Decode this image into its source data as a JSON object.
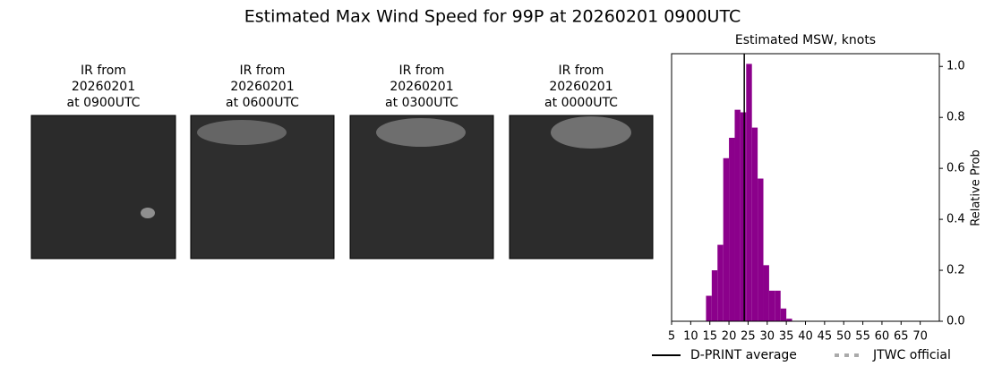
{
  "title": "Estimated Max Wind Speed for 99P at 20260201 0900UTC",
  "panels": [
    {
      "title_lines": [
        "IR from",
        "20260201",
        "at 0900UTC"
      ]
    },
    {
      "title_lines": [
        "IR from",
        "20260201",
        "at 0600UTC"
      ]
    },
    {
      "title_lines": [
        "IR from",
        "20260201",
        "at 0300UTC"
      ]
    },
    {
      "title_lines": [
        "IR from",
        "20260201",
        "at 0000UTC"
      ]
    }
  ],
  "chart_data": {
    "type": "histogram",
    "title": "Estimated MSW, knots",
    "y_label": "Relative Prob",
    "color": "#8b008b",
    "bins": [
      14,
      15.5,
      17,
      18.5,
      20,
      21.5,
      23,
      24.5,
      26,
      27.5,
      29,
      30.5,
      32,
      33.5,
      35,
      36.5
    ],
    "values": [
      0.1,
      0.2,
      0.3,
      0.64,
      0.72,
      0.83,
      0.82,
      1.01,
      0.76,
      0.56,
      0.22,
      0.12,
      0.12,
      0.05,
      0.01
    ],
    "xlim": [
      5,
      75
    ],
    "xticks": [
      5,
      10,
      15,
      20,
      25,
      30,
      35,
      40,
      45,
      50,
      55,
      60,
      65,
      70
    ],
    "ylim": [
      0,
      1.05
    ],
    "yticks": [
      {
        "value": 0,
        "label": "0.0"
      },
      0.2,
      0.4,
      0.6,
      0.8,
      {
        "value": 1,
        "label": "1.0"
      }
    ],
    "reference_lines": [
      {
        "name": "D-PRINT average",
        "color": "#000000",
        "style": "solid",
        "value": 24
      },
      {
        "name": "JTWC official",
        "color": "#aaaaaa",
        "style": "dotted",
        "value": null
      }
    ]
  }
}
